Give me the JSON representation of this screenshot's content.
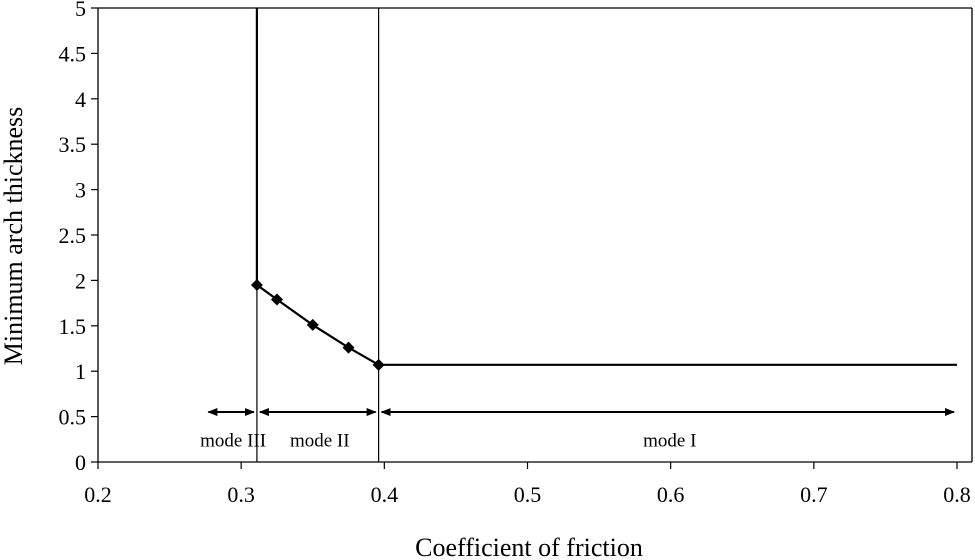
{
  "chart_data": {
    "type": "line",
    "title": "",
    "xlabel": "Coefficient of friction",
    "ylabel": "Minimum arch thickness",
    "xlim": [
      0.2,
      0.8
    ],
    "ylim": [
      0,
      5
    ],
    "xticks": [
      "0.2",
      "0.3",
      "0.4",
      "0.5",
      "0.6",
      "0.7",
      "0.8"
    ],
    "yticks": [
      "0",
      "0.5",
      "1",
      "1.5",
      "2",
      "2.5",
      "3",
      "3.5",
      "4",
      "4.5",
      "5"
    ],
    "grid": false,
    "legend": "none",
    "series": [
      {
        "points": [
          {
            "x": 0.311,
            "y": 5.0
          },
          {
            "x": 0.311,
            "y": 1.95
          },
          {
            "x": 0.325,
            "y": 1.79
          },
          {
            "x": 0.35,
            "y": 1.51
          },
          {
            "x": 0.375,
            "y": 1.26
          },
          {
            "x": 0.396,
            "y": 1.07
          },
          {
            "x": 0.8,
            "y": 1.07
          }
        ],
        "markers": [
          {
            "x": 0.311,
            "y": 1.95
          },
          {
            "x": 0.325,
            "y": 1.79
          },
          {
            "x": 0.35,
            "y": 1.51
          },
          {
            "x": 0.375,
            "y": 1.26
          },
          {
            "x": 0.396,
            "y": 1.07
          }
        ]
      }
    ],
    "vertical_lines": [
      0.311,
      0.396
    ],
    "mode_ranges": [
      {
        "label": "mode III",
        "from": 0.275,
        "to": 0.311
      },
      {
        "label": "mode II",
        "from": 0.311,
        "to": 0.396
      },
      {
        "label": "mode I",
        "from": 0.396,
        "to": 0.8
      }
    ],
    "mode_arrow_y": 0.55,
    "mode_label_y": 0.25
  }
}
